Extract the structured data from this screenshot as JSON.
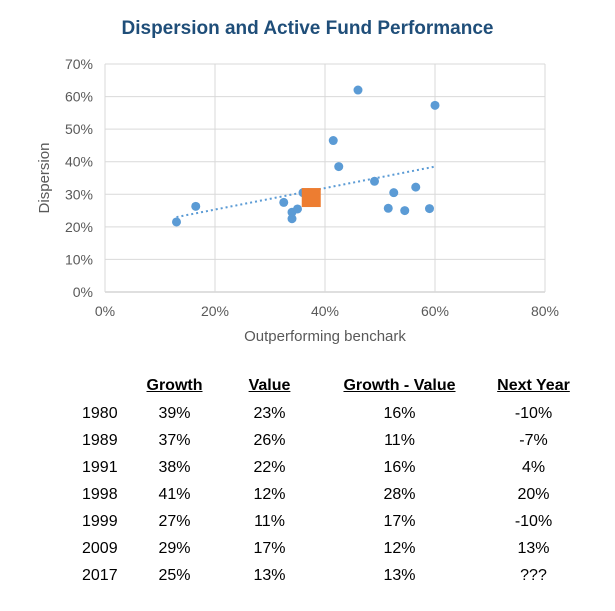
{
  "title": "Dispersion and Active Fund Performance",
  "colors": {
    "title": "#1f4e79",
    "points": "#5b9bd5",
    "highlight": "#ed7d31",
    "trend": "#5b9bd5",
    "grid": "#d9d9d9"
  },
  "chart_data": {
    "type": "scatter",
    "title": "Dispersion and Active Fund Performance",
    "xlabel": "Outperforming benchark",
    "ylabel": "Dispersion",
    "xlim": [
      0,
      0.8
    ],
    "ylim": [
      0,
      0.7
    ],
    "xticks": [
      "0%",
      "20%",
      "40%",
      "60%",
      "80%"
    ],
    "yticks": [
      "0%",
      "10%",
      "20%",
      "30%",
      "40%",
      "50%",
      "60%",
      "70%"
    ],
    "grid": "on",
    "legend": "none",
    "points": [
      {
        "x": 0.13,
        "y": 0.215
      },
      {
        "x": 0.165,
        "y": 0.263
      },
      {
        "x": 0.325,
        "y": 0.275
      },
      {
        "x": 0.34,
        "y": 0.225
      },
      {
        "x": 0.34,
        "y": 0.245
      },
      {
        "x": 0.35,
        "y": 0.255
      },
      {
        "x": 0.36,
        "y": 0.305
      },
      {
        "x": 0.37,
        "y": 0.305
      },
      {
        "x": 0.415,
        "y": 0.465
      },
      {
        "x": 0.425,
        "y": 0.385
      },
      {
        "x": 0.46,
        "y": 0.62
      },
      {
        "x": 0.49,
        "y": 0.34
      },
      {
        "x": 0.515,
        "y": 0.257
      },
      {
        "x": 0.525,
        "y": 0.305
      },
      {
        "x": 0.545,
        "y": 0.25
      },
      {
        "x": 0.565,
        "y": 0.322
      },
      {
        "x": 0.59,
        "y": 0.256
      },
      {
        "x": 0.6,
        "y": 0.573
      }
    ],
    "highlight": {
      "x": 0.375,
      "y": 0.29
    },
    "trendline": {
      "x0": 0.13,
      "y0": 0.23,
      "x1": 0.6,
      "y1": 0.385
    }
  },
  "table": {
    "headers": [
      "",
      "Growth",
      "Value",
      "Growth - Value",
      "Next Year"
    ],
    "rows": [
      [
        "1980",
        "39%",
        "23%",
        "16%",
        "-10%"
      ],
      [
        "1989",
        "37%",
        "26%",
        "11%",
        "-7%"
      ],
      [
        "1991",
        "38%",
        "22%",
        "16%",
        "4%"
      ],
      [
        "1998",
        "41%",
        "12%",
        "28%",
        "20%"
      ],
      [
        "1999",
        "27%",
        "11%",
        "17%",
        "-10%"
      ],
      [
        "2009",
        "29%",
        "17%",
        "12%",
        "13%"
      ],
      [
        "2017",
        "25%",
        "13%",
        "13%",
        "???"
      ]
    ]
  }
}
